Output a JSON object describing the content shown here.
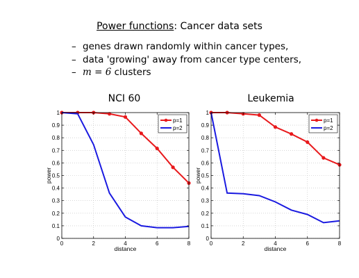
{
  "slide": {
    "title_part1": "Power functions",
    "title_part2": ": Cancer data sets",
    "bullets": [
      {
        "dash": "–",
        "text": "genes drawn randomly within cancer types,"
      },
      {
        "dash": "–",
        "text": "data 'growing' away from cancer type centers,"
      },
      {
        "dash": "–",
        "prefix": "m = 6",
        "text": " clusters"
      }
    ]
  },
  "chart_data": [
    {
      "type": "line",
      "title": "NCI 60",
      "xlabel": "distance",
      "ylabel": "power",
      "xlim": [
        0,
        8
      ],
      "ylim": [
        0,
        1
      ],
      "x_ticks": [
        "0",
        "2",
        "4",
        "6",
        "8"
      ],
      "y_ticks": [
        "0",
        "0.1",
        "0.2",
        "0.3",
        "0.4",
        "0.5",
        "0.6",
        "0.7",
        "0.8",
        "0.9",
        "1"
      ],
      "grid": true,
      "legend_position": "top-right",
      "series": [
        {
          "name": "p=1",
          "color": "#e8191c",
          "markers": true,
          "x": [
            0,
            1,
            2,
            3,
            4,
            5,
            6,
            7,
            8
          ],
          "y": [
            1.0,
            1.0,
            1.0,
            0.99,
            0.965,
            0.835,
            0.715,
            0.565,
            0.44
          ]
        },
        {
          "name": "p=2",
          "color": "#1a1ae0",
          "markers": false,
          "x": [
            0,
            1,
            2,
            3,
            4,
            5,
            6,
            7,
            8
          ],
          "y": [
            1.0,
            0.99,
            0.745,
            0.36,
            0.17,
            0.1,
            0.085,
            0.085,
            0.095
          ]
        }
      ]
    },
    {
      "type": "line",
      "title": "Leukemia",
      "xlabel": "distance",
      "ylabel": "power",
      "xlim": [
        0,
        8
      ],
      "ylim": [
        0,
        1
      ],
      "x_ticks": [
        "0",
        "2",
        "4",
        "6",
        "8"
      ],
      "y_ticks": [
        "0",
        "0.1",
        "0.2",
        "0.3",
        "0.4",
        "0.5",
        "0.6",
        "0.7",
        "0.8",
        "0.9",
        "1"
      ],
      "grid": true,
      "legend_position": "top-right",
      "series": [
        {
          "name": "p=1",
          "color": "#e8191c",
          "markers": true,
          "x": [
            0,
            1,
            2,
            3,
            4,
            5,
            6,
            7,
            8
          ],
          "y": [
            1.0,
            1.0,
            0.99,
            0.98,
            0.885,
            0.83,
            0.765,
            0.64,
            0.585
          ]
        },
        {
          "name": "p=2",
          "color": "#1a1ae0",
          "markers": false,
          "x": [
            0,
            1,
            2,
            3,
            4,
            5,
            6,
            7,
            8
          ],
          "y": [
            1.0,
            0.36,
            0.355,
            0.34,
            0.29,
            0.225,
            0.19,
            0.125,
            0.14
          ]
        }
      ]
    }
  ]
}
